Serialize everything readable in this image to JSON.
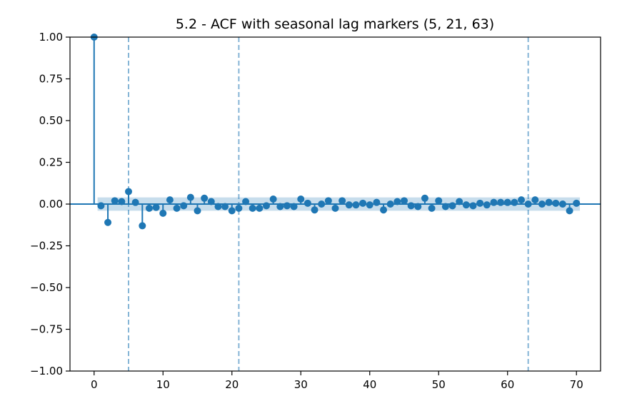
{
  "chart_data": {
    "type": "scatter",
    "subtype": "acf-stem",
    "title": "5.2 - ACF with seasonal lag markers (5, 21, 63)",
    "xlabel": "",
    "ylabel": "",
    "xlim": [
      -3.5,
      73.5
    ],
    "ylim": [
      -1.0,
      1.0
    ],
    "xticks": [
      0,
      10,
      20,
      30,
      40,
      50,
      60,
      70
    ],
    "xtick_labels": [
      "0",
      "10",
      "20",
      "30",
      "40",
      "50",
      "60",
      "70"
    ],
    "yticks": [
      -1.0,
      -0.75,
      -0.5,
      -0.25,
      0.0,
      0.25,
      0.5,
      0.75,
      1.0
    ],
    "ytick_labels": [
      "−1.00",
      "−0.75",
      "−0.50",
      "−0.25",
      "0.00",
      "0.25",
      "0.50",
      "0.75",
      "1.00"
    ],
    "grid": false,
    "confidence_band": 0.04,
    "seasonal_lags": [
      5,
      21,
      63
    ],
    "lags": [
      0,
      1,
      2,
      3,
      4,
      5,
      6,
      7,
      8,
      9,
      10,
      11,
      12,
      13,
      14,
      15,
      16,
      17,
      18,
      19,
      20,
      21,
      22,
      23,
      24,
      25,
      26,
      27,
      28,
      29,
      30,
      31,
      32,
      33,
      34,
      35,
      36,
      37,
      38,
      39,
      40,
      41,
      42,
      43,
      44,
      45,
      46,
      47,
      48,
      49,
      50,
      51,
      52,
      53,
      54,
      55,
      56,
      57,
      58,
      59,
      60,
      61,
      62,
      63,
      64,
      65,
      66,
      67,
      68,
      69,
      70
    ],
    "values": [
      1.0,
      -0.01,
      -0.11,
      0.02,
      0.015,
      0.075,
      0.01,
      -0.13,
      -0.025,
      -0.02,
      -0.055,
      0.025,
      -0.025,
      -0.01,
      0.04,
      -0.04,
      0.035,
      0.015,
      -0.015,
      -0.015,
      -0.04,
      -0.025,
      0.015,
      -0.025,
      -0.025,
      -0.01,
      0.03,
      -0.015,
      -0.01,
      -0.015,
      0.03,
      0.005,
      -0.035,
      0.0,
      0.02,
      -0.025,
      0.02,
      -0.005,
      -0.005,
      0.005,
      -0.005,
      0.01,
      -0.035,
      0.0,
      0.015,
      0.02,
      -0.01,
      -0.015,
      0.035,
      -0.025,
      0.02,
      -0.015,
      -0.01,
      0.015,
      -0.005,
      -0.01,
      0.005,
      -0.005,
      0.01,
      0.01,
      0.01,
      0.01,
      0.025,
      0.0,
      0.025,
      0.0,
      0.01,
      0.005,
      0.0,
      -0.04,
      0.005
    ],
    "colors": {
      "stem": "#1f77b4",
      "band": "#1f77b4",
      "seasonal_line": "#1f77b4"
    }
  }
}
